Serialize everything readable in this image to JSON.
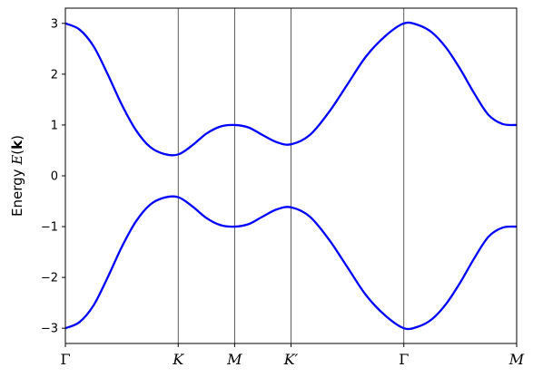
{
  "chart_data": {
    "type": "line",
    "title": "",
    "xlabel": "",
    "ylabel": {
      "prefix": "Energy ",
      "symbol": "E",
      "arg_open": "(",
      "arg": "k",
      "arg_close": ")"
    },
    "ylim": [
      -3.3,
      3.3
    ],
    "yticks": [
      -3,
      -2,
      -1,
      0,
      1,
      2,
      3
    ],
    "ytick_labels": [
      "−3",
      "−2",
      "−1",
      "0",
      "1",
      "2",
      "3"
    ],
    "xticks": [
      {
        "label": "Γ",
        "italic": false
      },
      {
        "label": "K",
        "italic": true
      },
      {
        "label": "M",
        "italic": true
      },
      {
        "label": "K′",
        "italic": true
      },
      {
        "label": "Γ",
        "italic": false
      },
      {
        "label": "M",
        "italic": true
      }
    ],
    "vertical_lines_at_ticks": [
      1,
      2,
      3,
      4
    ],
    "color": "#0000ff",
    "series": [
      {
        "points": [
          [
            0.0,
            3.0
          ],
          [
            0.25,
            2.88
          ],
          [
            0.5,
            2.55
          ],
          [
            0.75,
            2.0
          ],
          [
            1.0,
            1.4
          ],
          [
            1.25,
            0.9
          ],
          [
            1.5,
            0.57
          ],
          [
            1.75,
            0.43
          ],
          [
            2.0,
            0.42
          ],
          [
            2.25,
            0.6
          ],
          [
            2.5,
            0.83
          ],
          [
            2.75,
            0.97
          ],
          [
            3.0,
            1.0
          ],
          [
            3.25,
            0.95
          ],
          [
            3.5,
            0.8
          ],
          [
            3.75,
            0.66
          ],
          [
            4.0,
            0.62
          ],
          [
            4.33,
            0.8
          ],
          [
            4.67,
            1.25
          ],
          [
            5.0,
            1.8
          ],
          [
            5.33,
            2.35
          ],
          [
            5.67,
            2.75
          ],
          [
            6.0,
            3.0
          ],
          [
            6.25,
            2.97
          ],
          [
            6.5,
            2.82
          ],
          [
            6.75,
            2.52
          ],
          [
            7.0,
            2.1
          ],
          [
            7.25,
            1.62
          ],
          [
            7.5,
            1.2
          ],
          [
            7.75,
            1.02
          ],
          [
            8.0,
            1.0
          ]
        ]
      },
      {
        "points": [
          [
            0.0,
            -3.0
          ],
          [
            0.25,
            -2.88
          ],
          [
            0.5,
            -2.55
          ],
          [
            0.75,
            -2.0
          ],
          [
            1.0,
            -1.4
          ],
          [
            1.25,
            -0.9
          ],
          [
            1.5,
            -0.57
          ],
          [
            1.75,
            -0.43
          ],
          [
            2.0,
            -0.42
          ],
          [
            2.25,
            -0.6
          ],
          [
            2.5,
            -0.83
          ],
          [
            2.75,
            -0.97
          ],
          [
            3.0,
            -1.0
          ],
          [
            3.25,
            -0.95
          ],
          [
            3.5,
            -0.8
          ],
          [
            3.75,
            -0.66
          ],
          [
            4.0,
            -0.62
          ],
          [
            4.33,
            -0.8
          ],
          [
            4.67,
            -1.25
          ],
          [
            5.0,
            -1.8
          ],
          [
            5.33,
            -2.35
          ],
          [
            5.67,
            -2.75
          ],
          [
            6.0,
            -3.0
          ],
          [
            6.25,
            -2.97
          ],
          [
            6.5,
            -2.82
          ],
          [
            6.75,
            -2.52
          ],
          [
            7.0,
            -2.1
          ],
          [
            7.25,
            -1.62
          ],
          [
            7.5,
            -1.2
          ],
          [
            7.75,
            -1.02
          ],
          [
            8.0,
            -1.0
          ]
        ]
      }
    ],
    "xtick_positions": [
      0,
      2,
      3,
      4,
      6,
      8
    ],
    "xlim": [
      0,
      8
    ],
    "grid": false,
    "legend": "none"
  }
}
